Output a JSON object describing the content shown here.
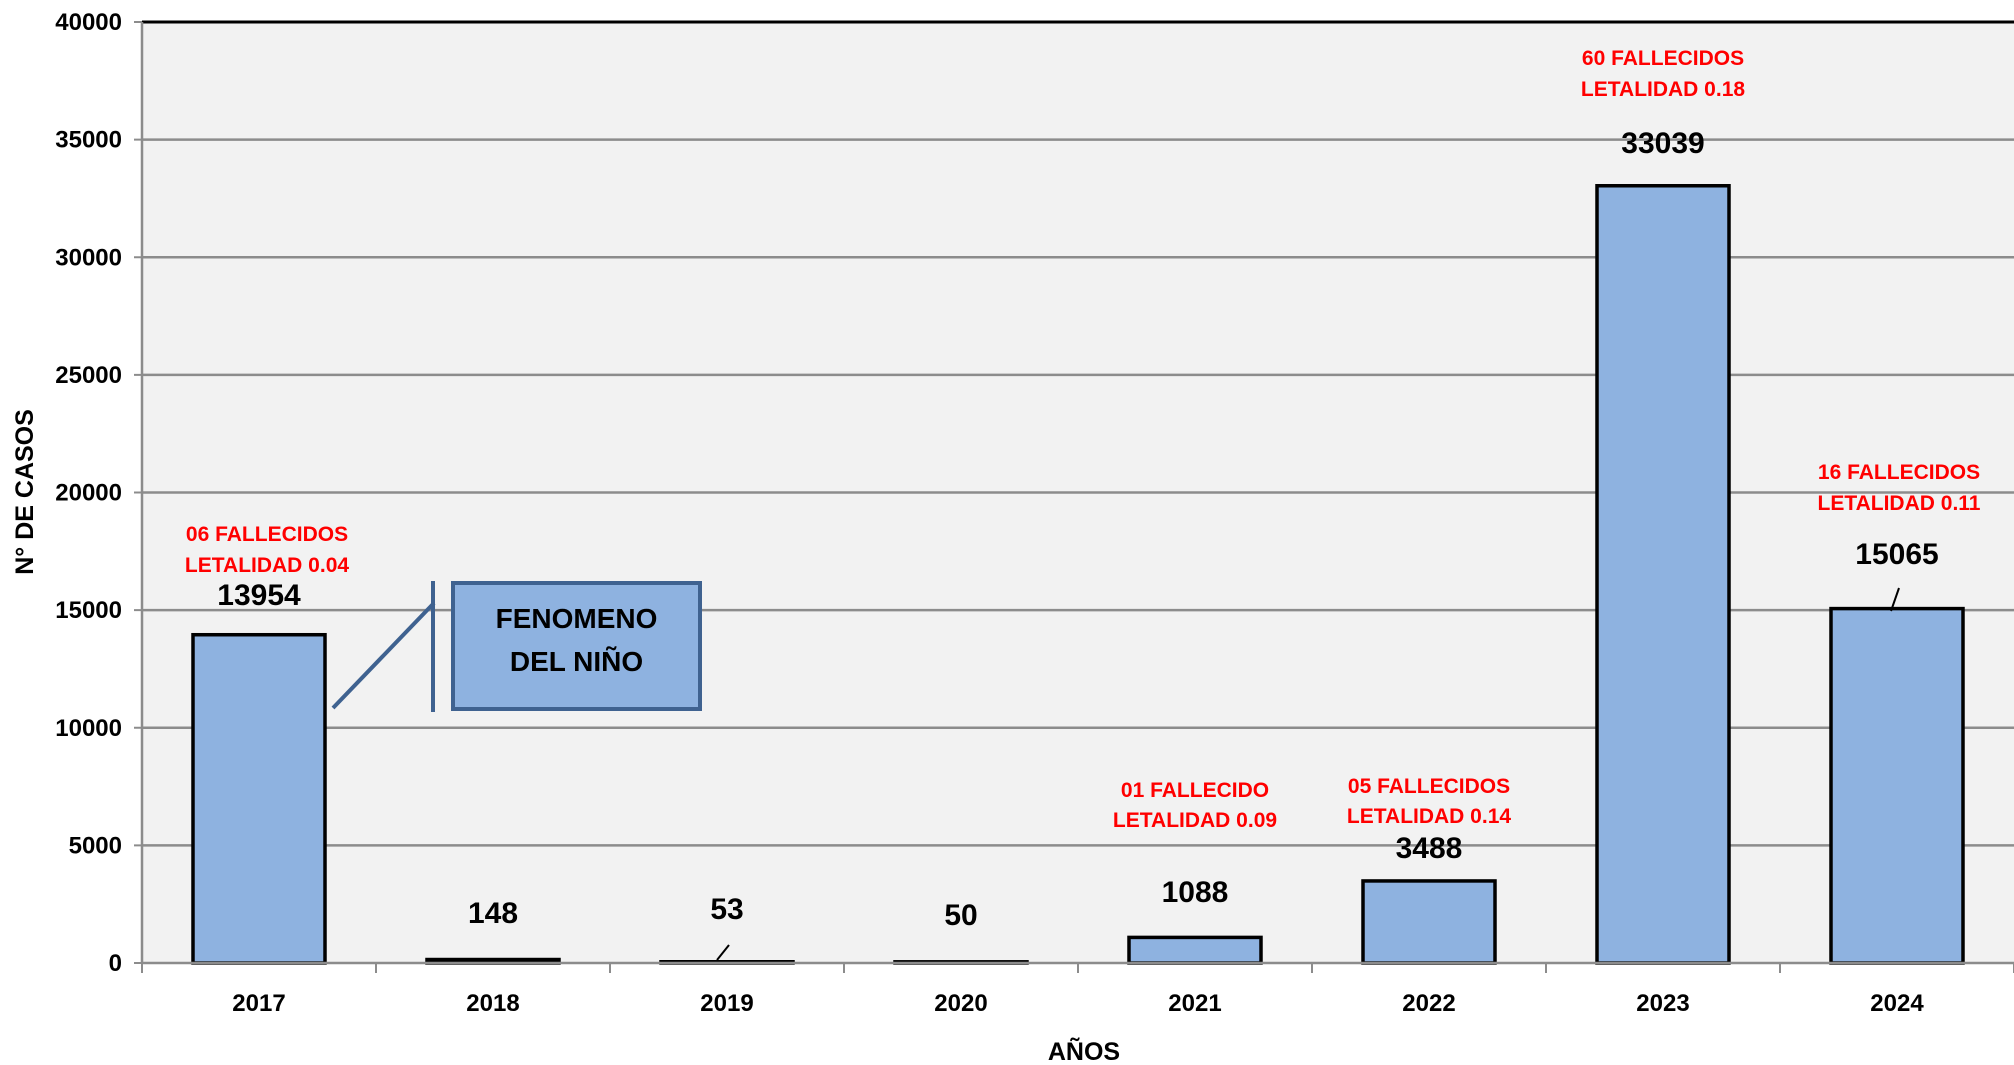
{
  "chart_data": {
    "type": "bar",
    "title": "",
    "xlabel": "AÑOS",
    "ylabel": "N° DE CASOS",
    "ylim": [
      0,
      40000
    ],
    "y_ticks": [
      0,
      5000,
      10000,
      15000,
      20000,
      25000,
      30000,
      35000,
      40000
    ],
    "grid": true,
    "categories": [
      "2017",
      "2018",
      "2019",
      "2020",
      "2021",
      "2022",
      "2023",
      "2024"
    ],
    "values": [
      13954,
      148,
      53,
      50,
      1088,
      3488,
      33039,
      15065
    ],
    "annotations": [
      {
        "category": "2017",
        "lines": [
          "06 FALLECIDOS",
          "LETALIDAD 0.04"
        ]
      },
      {
        "category": "2021",
        "lines": [
          "01 FALLECIDO",
          "LETALIDAD 0.09"
        ]
      },
      {
        "category": "2022",
        "lines": [
          "05 FALLECIDOS",
          "LETALIDAD 0.14"
        ]
      },
      {
        "category": "2023",
        "lines": [
          "60 FALLECIDOS",
          "LETALIDAD 0.18"
        ]
      },
      {
        "category": "2024",
        "lines": [
          "16 FALLECIDOS",
          "LETALIDAD 0.11"
        ]
      }
    ],
    "callout": {
      "category": "2017",
      "lines": [
        "FENOMENO",
        "DEL NIÑO"
      ]
    }
  },
  "colors": {
    "plot_background": "#f2f2f2",
    "bar_fill": "#8eb2e0",
    "bar_stroke": "#000000",
    "gridline": "#8c8c8c",
    "annotation_text": "#ff0000",
    "callout_fill": "#8eb2e0",
    "callout_stroke": "#3f6290"
  }
}
